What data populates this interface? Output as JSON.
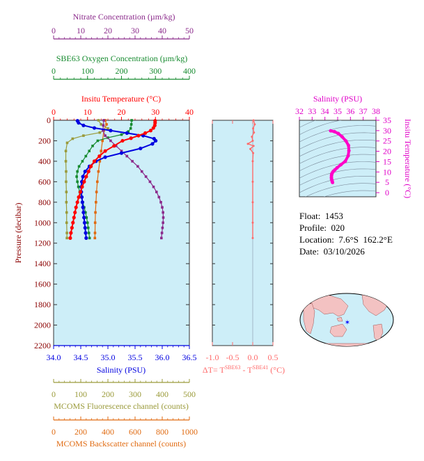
{
  "colors": {
    "nitrate": "#8b2a8b",
    "oxygen": "#158a2e",
    "temperature": "#ff0000",
    "salinity": "#0000e0",
    "fluorescence": "#9a9a3a",
    "backscatter": "#e06a10",
    "delta_t": "#ff6a6a",
    "ts_line": "#ff00c8",
    "plot_bg": "#cdeef8"
  },
  "info": {
    "float_label": "Float:",
    "float_value": "1453",
    "profile_label": "Profile:",
    "profile_value": "020",
    "location_label": "Location:",
    "location_value": "7.6°S  162.2°E",
    "date_label": "Date:",
    "date_value": "03/10/2026"
  },
  "chart_data": [
    {
      "type": "line",
      "title": "",
      "ylabel": "Pressure (decibar)",
      "ylim": [
        2200,
        0
      ],
      "y_ticks": [
        "0",
        "200",
        "400",
        "600",
        "800",
        "1000",
        "1200",
        "1400",
        "1600",
        "1800",
        "2000",
        "2200"
      ],
      "axes": {
        "nitrate": {
          "label": "Nitrate Concentration (µm/kg)",
          "range": [
            0,
            50
          ],
          "ticks": [
            "0",
            "10",
            "20",
            "30",
            "40",
            "50"
          ]
        },
        "oxygen": {
          "label": "SBE63 Oxygen Concentration (µm/kg)",
          "range": [
            0,
            400
          ],
          "ticks": [
            "0",
            "100",
            "200",
            "300",
            "400"
          ]
        },
        "temperature": {
          "label": "Insitu Temperature (°C)",
          "range": [
            0,
            40
          ],
          "ticks": [
            "0",
            "10",
            "20",
            "30",
            "40"
          ]
        },
        "salinity": {
          "label": "Salinity (PSU)",
          "range": [
            34.0,
            36.5
          ],
          "ticks": [
            "34.0",
            "34.5",
            "35.0",
            "35.5",
            "36.0",
            "36.5"
          ]
        },
        "fluorescence": {
          "label": "MCOMS Fluorescence channel (counts)",
          "range": [
            0,
            500
          ],
          "ticks": [
            "0",
            "100",
            "200",
            "300",
            "400",
            "500"
          ]
        },
        "backscatter": {
          "label": "MCOMS Backscatter channel (counts)",
          "range": [
            0,
            1000
          ],
          "ticks": [
            "0",
            "200",
            "400",
            "600",
            "800",
            "1000"
          ]
        }
      },
      "series": [
        {
          "name": "Temperature",
          "axis": "temperature",
          "marker": "dot",
          "points": [
            [
              29.9,
              5
            ],
            [
              29.9,
              25
            ],
            [
              29.8,
              50
            ],
            [
              29.4,
              75
            ],
            [
              28.6,
              100
            ],
            [
              27.0,
              125
            ],
            [
              25.0,
              150
            ],
            [
              22.8,
              175
            ],
            [
              20.3,
              200
            ],
            [
              17.8,
              250
            ],
            [
              15.2,
              300
            ],
            [
              13.5,
              350
            ],
            [
              12.0,
              400
            ],
            [
              11.0,
              450
            ],
            [
              10.3,
              500
            ],
            [
              9.6,
              550
            ],
            [
              9.0,
              600
            ],
            [
              8.4,
              650
            ],
            [
              7.9,
              700
            ],
            [
              7.4,
              750
            ],
            [
              7.0,
              800
            ],
            [
              6.6,
              850
            ],
            [
              6.3,
              900
            ],
            [
              6.0,
              950
            ],
            [
              5.7,
              1000
            ],
            [
              5.4,
              1050
            ],
            [
              5.1,
              1100
            ],
            [
              4.9,
              1150
            ]
          ]
        },
        {
          "name": "Salinity",
          "axis": "salinity",
          "marker": "dot",
          "points": [
            [
              34.44,
              5
            ],
            [
              34.46,
              25
            ],
            [
              34.55,
              50
            ],
            [
              34.75,
              75
            ],
            [
              35.05,
              100
            ],
            [
              35.35,
              125
            ],
            [
              35.65,
              150
            ],
            [
              35.85,
              180
            ],
            [
              35.88,
              200
            ],
            [
              35.82,
              230
            ],
            [
              35.6,
              275
            ],
            [
              35.25,
              320
            ],
            [
              34.95,
              360
            ],
            [
              34.78,
              400
            ],
            [
              34.66,
              450
            ],
            [
              34.58,
              500
            ],
            [
              34.54,
              550
            ],
            [
              34.52,
              600
            ],
            [
              34.51,
              650
            ],
            [
              34.51,
              700
            ],
            [
              34.52,
              750
            ],
            [
              34.53,
              800
            ],
            [
              34.54,
              850
            ],
            [
              34.55,
              900
            ],
            [
              34.56,
              950
            ],
            [
              34.57,
              1000
            ],
            [
              34.58,
              1050
            ],
            [
              34.59,
              1100
            ],
            [
              34.6,
              1150
            ]
          ]
        },
        {
          "name": "Nitrate",
          "axis": "nitrate",
          "marker": "square",
          "points": [
            [
              18.5,
              0
            ],
            [
              18.3,
              50
            ],
            [
              18.2,
              100
            ],
            [
              19.0,
              150
            ],
            [
              21.0,
              200
            ],
            [
              23.0,
              250
            ],
            [
              25.0,
              300
            ],
            [
              27.0,
              350
            ],
            [
              29.0,
              400
            ],
            [
              31.0,
              450
            ],
            [
              32.5,
              500
            ],
            [
              34.0,
              550
            ],
            [
              35.5,
              600
            ],
            [
              36.8,
              650
            ],
            [
              37.9,
              700
            ],
            [
              38.8,
              750
            ],
            [
              39.5,
              800
            ],
            [
              40.0,
              850
            ],
            [
              40.3,
              900
            ],
            [
              40.4,
              950
            ],
            [
              40.3,
              1000
            ],
            [
              40.1,
              1050
            ],
            [
              39.9,
              1100
            ],
            [
              39.7,
              1150
            ]
          ]
        },
        {
          "name": "Oxygen",
          "axis": "oxygen",
          "marker": "square",
          "points": [
            [
              230,
              0
            ],
            [
              229,
              40
            ],
            [
              227,
              80
            ],
            [
              220,
              110
            ],
            [
              200,
              140
            ],
            [
              160,
              170
            ],
            [
              130,
              200
            ],
            [
              115,
              250
            ],
            [
              105,
              300
            ],
            [
              95,
              350
            ],
            [
              85,
              400
            ],
            [
              75,
              450
            ],
            [
              70,
              500
            ],
            [
              68,
              550
            ],
            [
              70,
              600
            ],
            [
              73,
              650
            ],
            [
              77,
              700
            ],
            [
              82,
              750
            ],
            [
              86,
              800
            ],
            [
              90,
              850
            ],
            [
              94,
              900
            ],
            [
              97,
              950
            ],
            [
              100,
              1000
            ],
            [
              102,
              1050
            ],
            [
              104,
              1100
            ],
            [
              106,
              1150
            ]
          ]
        },
        {
          "name": "Fluorescence",
          "axis": "fluorescence",
          "marker": "square",
          "points": [
            [
              165,
              0
            ],
            [
              175,
              40
            ],
            [
              200,
              80
            ],
            [
              170,
              120
            ],
            [
              110,
              150
            ],
            [
              70,
              180
            ],
            [
              50,
              220
            ],
            [
              45,
              300
            ],
            [
              45,
              400
            ],
            [
              46,
              500
            ],
            [
              46,
              600
            ],
            [
              47,
              700
            ],
            [
              47,
              800
            ],
            [
              48,
              900
            ],
            [
              48,
              1000
            ],
            [
              49,
              1100
            ],
            [
              49,
              1150
            ]
          ]
        },
        {
          "name": "Backscatter",
          "axis": "backscatter",
          "marker": "square",
          "points": [
            [
              380,
              0
            ],
            [
              390,
              40
            ],
            [
              370,
              100
            ],
            [
              360,
              200
            ],
            [
              350,
              300
            ],
            [
              340,
              400
            ],
            [
              330,
              500
            ],
            [
              322,
              600
            ],
            [
              316,
              700
            ],
            [
              312,
              800
            ],
            [
              308,
              900
            ],
            [
              306,
              1000
            ],
            [
              305,
              1100
            ],
            [
              304,
              1150
            ]
          ]
        }
      ]
    },
    {
      "type": "line",
      "title": "",
      "xlabel": "ΔT= T^SBE63 - T^SBE41 (°C)",
      "xlim": [
        -1.0,
        0.5
      ],
      "x_ticks": [
        "-1.0",
        "-0.5",
        "0.0",
        "0.5"
      ],
      "ylim": [
        2200,
        0
      ],
      "series": [
        {
          "name": "",
          "points": [
            [
              0.02,
              0
            ],
            [
              0.05,
              40
            ],
            [
              0.01,
              80
            ],
            [
              0.03,
              120
            ],
            [
              -0.02,
              160
            ],
            [
              0.0,
              200
            ],
            [
              -0.12,
              230
            ],
            [
              0.02,
              250
            ],
            [
              -0.06,
              280
            ],
            [
              0.01,
              320
            ],
            [
              0.0,
              400
            ],
            [
              0.0,
              600
            ],
            [
              0.0,
              800
            ],
            [
              0.0,
              1000
            ],
            [
              0.0,
              1150
            ]
          ]
        }
      ]
    },
    {
      "type": "line",
      "title": "",
      "xlabel": "Salinity (PSU)",
      "ylabel": "Insitu Temperature (°C)",
      "xlim": [
        32,
        38
      ],
      "ylim": [
        -2,
        35
      ],
      "x_ticks": [
        "32",
        "33",
        "34",
        "35",
        "36",
        "37",
        "38"
      ],
      "y_ticks": [
        "0",
        "5",
        "10",
        "15",
        "20",
        "25",
        "30",
        "35"
      ],
      "series": [
        {
          "name": "",
          "points": [
            [
              34.45,
              29.9
            ],
            [
              34.75,
              29.5
            ],
            [
              35.05,
              28.6
            ],
            [
              35.35,
              27.0
            ],
            [
              35.65,
              25.0
            ],
            [
              35.85,
              22.8
            ],
            [
              35.88,
              20.3
            ],
            [
              35.82,
              17.8
            ],
            [
              35.6,
              15.2
            ],
            [
              35.25,
              13.5
            ],
            [
              34.95,
              12.0
            ],
            [
              34.78,
              11.0
            ],
            [
              34.66,
              10.3
            ],
            [
              34.58,
              9.6
            ],
            [
              34.54,
              9.0
            ],
            [
              34.52,
              8.4
            ],
            [
              34.51,
              7.4
            ],
            [
              34.52,
              6.6
            ],
            [
              34.55,
              6.0
            ],
            [
              34.57,
              5.4
            ],
            [
              34.6,
              4.9
            ]
          ]
        }
      ]
    }
  ]
}
